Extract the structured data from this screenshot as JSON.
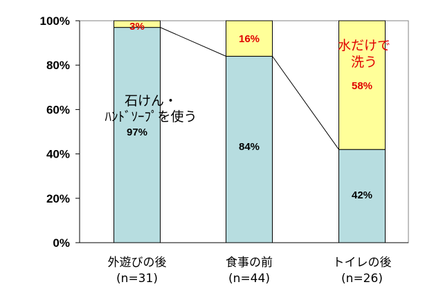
{
  "chart_data": {
    "type": "bar",
    "stacked": true,
    "percent": true,
    "categories": [
      "外遊びの後",
      "食事の前",
      "トイレの後"
    ],
    "category_counts": [
      "(n=31)",
      "(n=44)",
      "(n=26)"
    ],
    "series": [
      {
        "name": "石けん・ハンドソープを使う",
        "values": [
          97,
          84,
          42
        ],
        "labels": [
          "97%",
          "84%",
          "42%"
        ],
        "color": "#b7dde0",
        "label_color": "#000000"
      },
      {
        "name": "水だけで洗う",
        "values": [
          3,
          16,
          58
        ],
        "labels": [
          "3%",
          "16%",
          "58%"
        ],
        "color": "#ffff99",
        "label_color": "#e00000"
      }
    ],
    "yticks": [
      "0%",
      "20%",
      "40%",
      "60%",
      "80%",
      "100%"
    ],
    "ylim": [
      0,
      100
    ],
    "series_lines": true,
    "annotations": {
      "soap_line1": "石けん・",
      "soap_line2": "ﾊﾝﾄﾞｿｰﾌﾟを使う",
      "water_line1": "水だけで",
      "water_line2": "洗う"
    },
    "title": "",
    "xlabel": "",
    "ylabel": "",
    "grid": false
  }
}
